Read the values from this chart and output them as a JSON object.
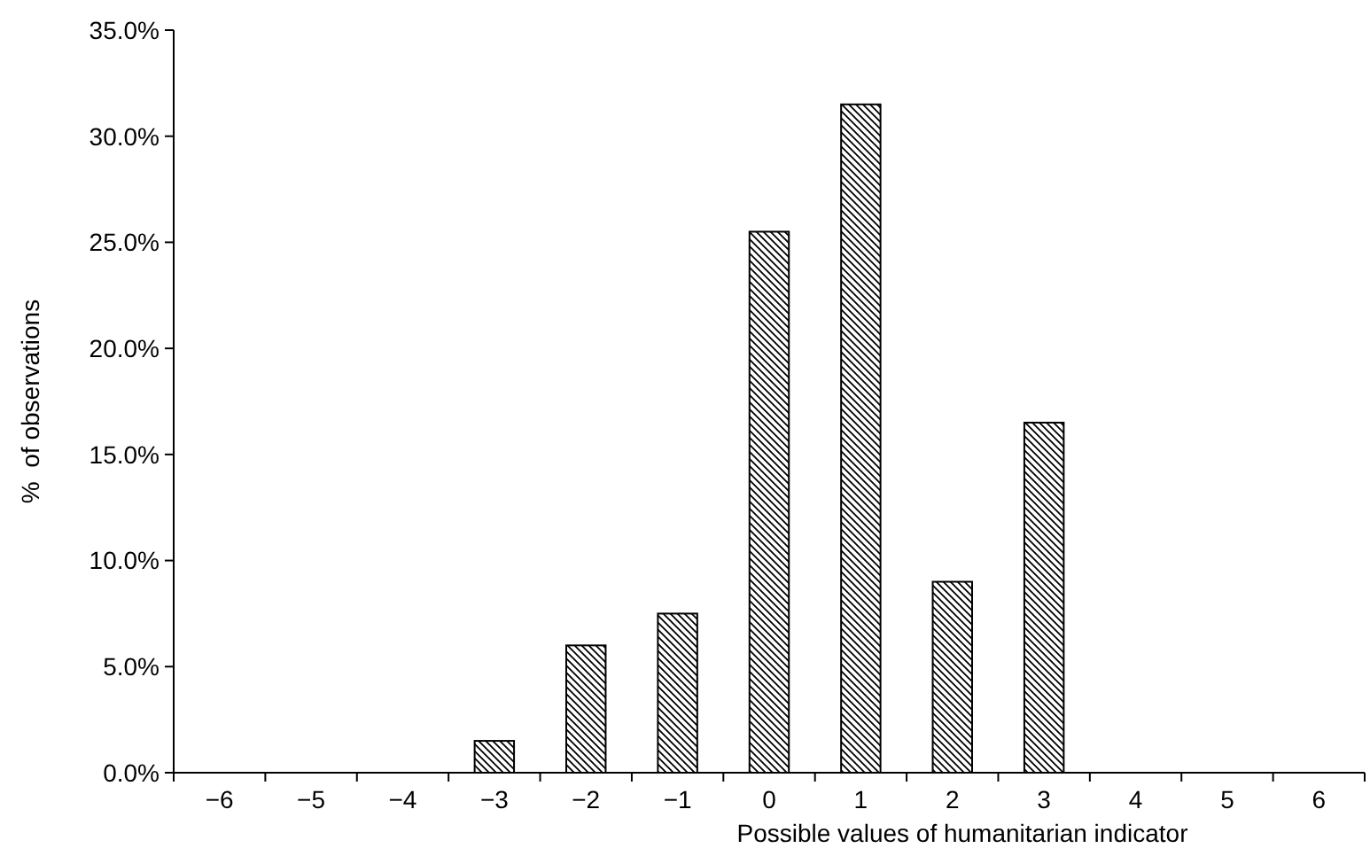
{
  "chart_data": {
    "type": "bar",
    "xlabel": "Possible values of humanitarian indicator",
    "ylabel": "%  of observations",
    "categories": [
      "−6",
      "−5",
      "−4",
      "−3",
      "−2",
      "−1",
      "0",
      "1",
      "2",
      "3",
      "4",
      "5",
      "6"
    ],
    "values": [
      0,
      0,
      0,
      1.5,
      6,
      7.5,
      25.5,
      31.5,
      9,
      16.5,
      0,
      0,
      0
    ],
    "color": "#000000",
    "ylim": [
      0,
      35
    ],
    "yticks": [
      {
        "value": 0,
        "label": "0.0%"
      },
      {
        "value": 5,
        "label": "5.0%"
      },
      {
        "value": 10,
        "label": "10.0%"
      },
      {
        "value": 15,
        "label": "15.0%"
      },
      {
        "value": 20,
        "label": "20.0%"
      },
      {
        "value": 25,
        "label": "25.0%"
      },
      {
        "value": 30,
        "label": "30.0%"
      },
      {
        "value": 35,
        "label": "35.0%"
      }
    ]
  }
}
